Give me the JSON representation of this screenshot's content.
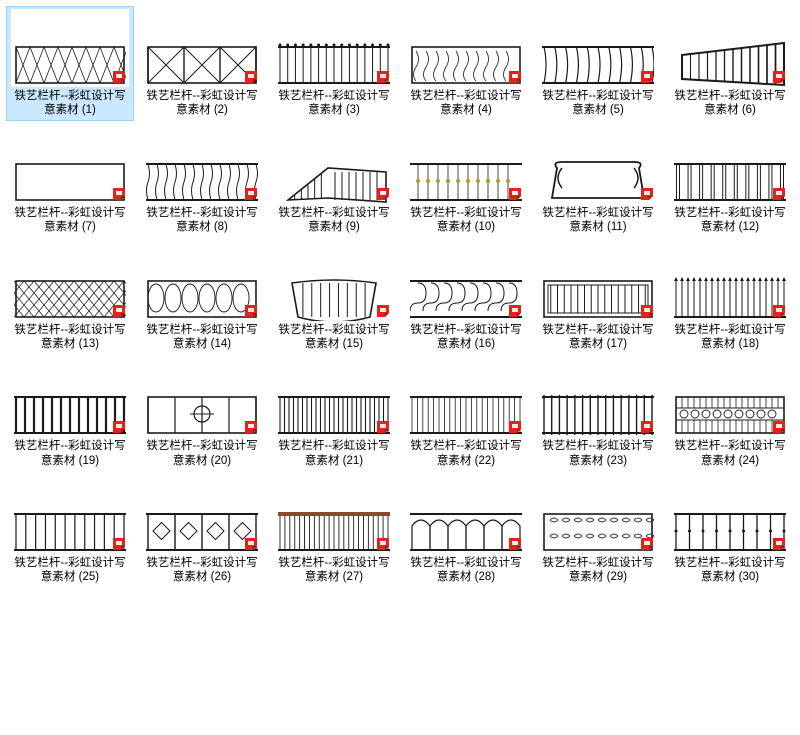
{
  "label_prefix": "铁艺栏杆--彩虹设计写意素材",
  "columns": 6,
  "rows": 5,
  "label_font_size": 11.5,
  "label_color": "#000000",
  "background_color": "#ffffff",
  "selected_bg": "#cce8ff",
  "selected_border": "#99d1ff",
  "badge_color": "#e2231a",
  "rail_color": "#1a1a1a",
  "thumb_bg": "#ffffff",
  "items": [
    {
      "n": 1,
      "pattern": "diamond-grid",
      "selected": true
    },
    {
      "n": 2,
      "pattern": "x-panels",
      "selected": false
    },
    {
      "n": 3,
      "pattern": "vertical-dots",
      "selected": false
    },
    {
      "n": 4,
      "pattern": "dense-scroll",
      "selected": false
    },
    {
      "n": 5,
      "pattern": "curved-bars",
      "selected": false
    },
    {
      "n": 6,
      "pattern": "persp-bars",
      "selected": false
    },
    {
      "n": 7,
      "pattern": "simple-rect",
      "selected": false
    },
    {
      "n": 8,
      "pattern": "wavy-bars",
      "selected": false
    },
    {
      "n": 9,
      "pattern": "corner-persp",
      "selected": false
    },
    {
      "n": 10,
      "pattern": "fleur-row",
      "selected": false
    },
    {
      "n": 11,
      "pattern": "bench-scroll",
      "selected": false
    },
    {
      "n": 12,
      "pattern": "twin-bars",
      "selected": false
    },
    {
      "n": 13,
      "pattern": "lattice",
      "selected": false
    },
    {
      "n": 14,
      "pattern": "oval-mesh",
      "selected": false
    },
    {
      "n": 15,
      "pattern": "balcony",
      "selected": false
    },
    {
      "n": 16,
      "pattern": "s-scroll",
      "selected": false
    },
    {
      "n": 17,
      "pattern": "frame-bars",
      "selected": false
    },
    {
      "n": 18,
      "pattern": "spike-bars",
      "selected": false
    },
    {
      "n": 19,
      "pattern": "thick-bars",
      "selected": false
    },
    {
      "n": 20,
      "pattern": "center-motif",
      "selected": false
    },
    {
      "n": 21,
      "pattern": "dense-bars",
      "selected": false
    },
    {
      "n": 22,
      "pattern": "thin-bars",
      "selected": false
    },
    {
      "n": 23,
      "pattern": "tall-bars",
      "selected": false
    },
    {
      "n": 24,
      "pattern": "ornate-band",
      "selected": false
    },
    {
      "n": 25,
      "pattern": "plain-bars",
      "selected": false
    },
    {
      "n": 26,
      "pattern": "diamond-rail",
      "selected": false
    },
    {
      "n": 27,
      "pattern": "color-top",
      "selected": false
    },
    {
      "n": 28,
      "pattern": "arch-bars",
      "selected": false
    },
    {
      "n": 29,
      "pattern": "scroll-fill",
      "selected": false
    },
    {
      "n": 30,
      "pattern": "sparse-bars",
      "selected": false
    }
  ]
}
